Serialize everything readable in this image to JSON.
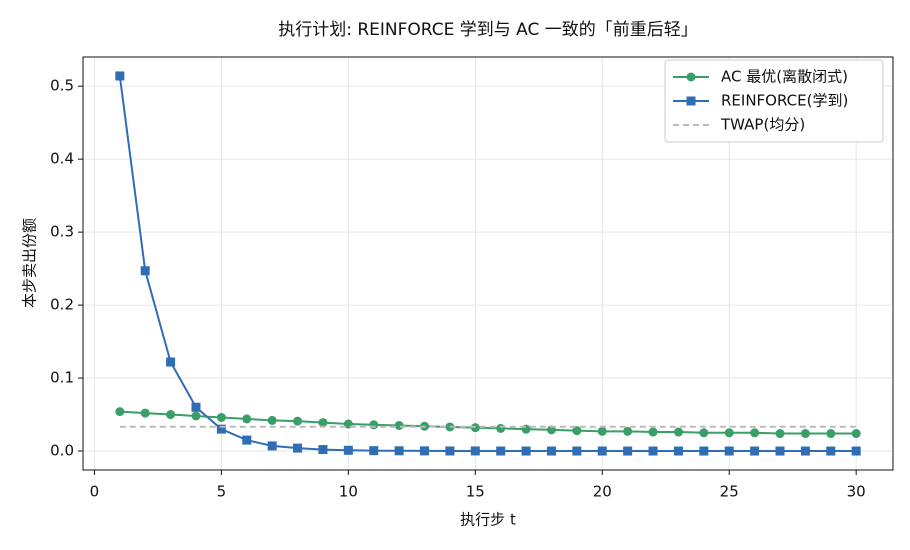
{
  "chart_data": {
    "type": "line",
    "title": "执行计划: REINFORCE 学到与 AC 一致的「前重后轻」",
    "x_label": "执行步 t",
    "y_label": "本步卖出份额",
    "x": [
      1,
      2,
      3,
      4,
      5,
      6,
      7,
      8,
      9,
      10,
      11,
      12,
      13,
      14,
      15,
      16,
      17,
      18,
      19,
      20,
      21,
      22,
      23,
      24,
      25,
      26,
      27,
      28,
      29,
      30
    ],
    "series": [
      {
        "name": "AC 最优(离散闭式)",
        "color": "#3a9e68",
        "marker": "circle",
        "linestyle": "solid",
        "values": [
          0.054,
          0.052,
          0.05,
          0.048,
          0.046,
          0.044,
          0.042,
          0.041,
          0.039,
          0.037,
          0.036,
          0.035,
          0.034,
          0.033,
          0.032,
          0.031,
          0.03,
          0.029,
          0.028,
          0.027,
          0.027,
          0.026,
          0.026,
          0.025,
          0.025,
          0.025,
          0.024,
          0.024,
          0.024,
          0.024
        ]
      },
      {
        "name": "REINFORCE(学到)",
        "color": "#2f6db5",
        "marker": "square",
        "linestyle": "solid",
        "values": [
          0.514,
          0.247,
          0.122,
          0.06,
          0.03,
          0.015,
          0.007,
          0.004,
          0.002,
          0.001,
          0.0005,
          0.0003,
          0.0002,
          0.0001,
          0.0001,
          0,
          0,
          0,
          0,
          0,
          0,
          0,
          0,
          0,
          0,
          0,
          0,
          0,
          0,
          0
        ]
      },
      {
        "name": "TWAP(均分)",
        "color": "#bbbbbb",
        "marker": null,
        "linestyle": "dashed",
        "values": [
          0.0333,
          0.0333,
          0.0333,
          0.0333,
          0.0333,
          0.0333,
          0.0333,
          0.0333,
          0.0333,
          0.0333,
          0.0333,
          0.0333,
          0.0333,
          0.0333,
          0.0333,
          0.0333,
          0.0333,
          0.0333,
          0.0333,
          0.0333,
          0.0333,
          0.0333,
          0.0333,
          0.0333,
          0.0333,
          0.0333,
          0.0333,
          0.0333,
          0.0333,
          0.0333
        ]
      }
    ],
    "xlim": [
      -0.45,
      31.45
    ],
    "xticks": [
      0,
      5,
      10,
      15,
      20,
      25,
      30
    ],
    "ylim": [
      -0.026,
      0.54
    ],
    "yticks": [
      {
        "value": 0,
        "label": "0.0"
      },
      0.1,
      0.2,
      0.3,
      0.4,
      0.5
    ],
    "grid": true,
    "legend": "upper right"
  }
}
